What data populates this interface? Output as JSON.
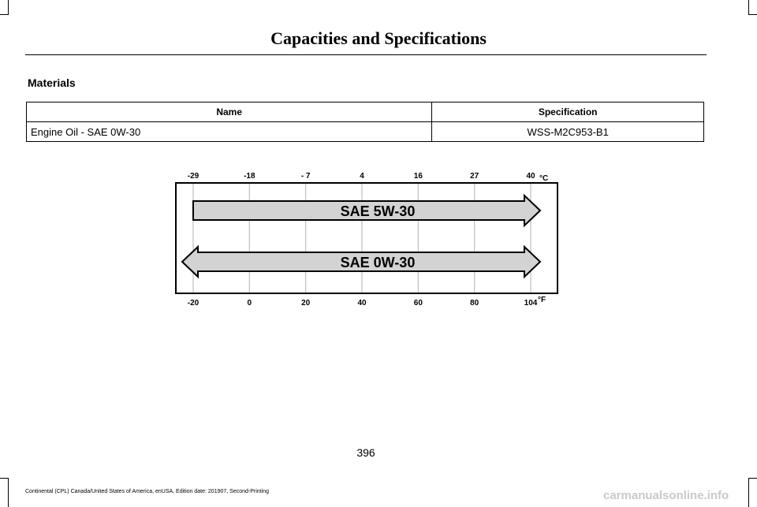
{
  "header": {
    "title": "Capacities and Specifications"
  },
  "section": {
    "heading": "Materials"
  },
  "table": {
    "columns": [
      "Name",
      "Specification"
    ],
    "rows": [
      [
        "Engine Oil - SAE 0W-30",
        "WSS-M2C953-B1"
      ]
    ]
  },
  "chart_data": {
    "type": "other",
    "celsius_ticks": [
      "-29",
      "-18",
      "- 7",
      "4",
      "16",
      "27",
      "40"
    ],
    "fahrenheit_ticks": [
      "-20",
      "0",
      "20",
      "40",
      "60",
      "80",
      "104"
    ],
    "celsius_unit": "°C",
    "fahrenheit_unit": "°F",
    "bars": [
      {
        "label": "SAE 5W-30",
        "from_f": -20,
        "to_f": 104,
        "arrow_left": false,
        "arrow_right": true
      },
      {
        "label": "SAE 0W-30",
        "from_f": -20,
        "to_f": 104,
        "arrow_left": true,
        "arrow_right": true
      }
    ]
  },
  "footer": {
    "page_number": "396",
    "text": "Continental (CPL) Canada/United States of America, enUSA, Edition date: 201907, Second-Printing",
    "watermark": "carmanualsonline.info"
  }
}
